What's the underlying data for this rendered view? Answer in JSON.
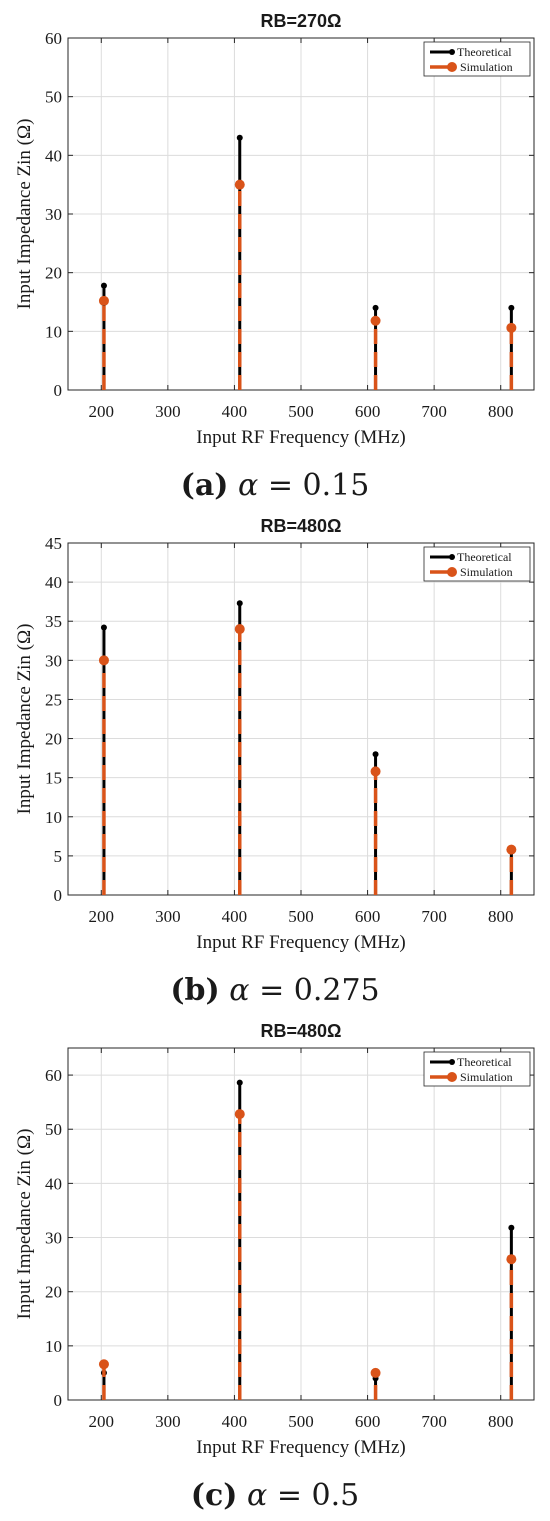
{
  "chart_data": [
    {
      "type": "stem",
      "title": "RB=270Ω",
      "xlabel": "Input RF Frequency (MHz)",
      "ylabel": "Input Impedance Zin (Ω)",
      "xlim": [
        150,
        850
      ],
      "ylim": [
        0,
        60
      ],
      "xticks": [
        200,
        300,
        400,
        500,
        600,
        700,
        800
      ],
      "yticks": [
        0,
        10,
        20,
        30,
        40,
        50,
        60
      ],
      "grid": true,
      "legend_position": "top-right",
      "colors": {
        "theoretical": "#000000",
        "simulation": "#d95319"
      },
      "series": [
        {
          "name": "Theoretical",
          "x": [
            204,
            408,
            612,
            816
          ],
          "y": [
            17.8,
            43.0,
            14.0,
            14.0
          ]
        },
        {
          "name": "Simulation",
          "x": [
            204,
            408,
            612,
            816
          ],
          "y": [
            15.2,
            35.0,
            11.8,
            10.6
          ]
        }
      ],
      "caption": {
        "letter": "(a)",
        "symbol": "α",
        "eq": "= 0.15"
      }
    },
    {
      "type": "stem",
      "title": "RB=480Ω",
      "xlabel": "Input RF Frequency (MHz)",
      "ylabel": "Input Impedance Zin (Ω)",
      "xlim": [
        150,
        850
      ],
      "ylim": [
        0,
        45
      ],
      "xticks": [
        200,
        300,
        400,
        500,
        600,
        700,
        800
      ],
      "yticks": [
        0,
        5,
        10,
        15,
        20,
        25,
        30,
        35,
        40,
        45
      ],
      "grid": true,
      "legend_position": "top-right",
      "colors": {
        "theoretical": "#000000",
        "simulation": "#d95319"
      },
      "series": [
        {
          "name": "Theoretical",
          "x": [
            204,
            408,
            612,
            816
          ],
          "y": [
            34.2,
            37.3,
            18.0,
            5.8
          ]
        },
        {
          "name": "Simulation",
          "x": [
            204,
            408,
            612,
            816
          ],
          "y": [
            30.0,
            34.0,
            15.8,
            5.8
          ]
        }
      ],
      "caption": {
        "letter": "(b)",
        "symbol": "α",
        "eq": "= 0.275"
      }
    },
    {
      "type": "stem",
      "title": "RB=480Ω",
      "xlabel": "Input RF Frequency (MHz)",
      "ylabel": "Input Impedance Zin (Ω)",
      "xlim": [
        150,
        850
      ],
      "ylim": [
        0,
        65
      ],
      "xticks": [
        200,
        300,
        400,
        500,
        600,
        700,
        800
      ],
      "yticks": [
        0,
        10,
        20,
        30,
        40,
        50,
        60
      ],
      "grid": true,
      "legend_position": "top-right",
      "colors": {
        "theoretical": "#000000",
        "simulation": "#d95319"
      },
      "series": [
        {
          "name": "Theoretical",
          "x": [
            204,
            408,
            612,
            816
          ],
          "y": [
            5.0,
            58.6,
            4.0,
            31.8
          ]
        },
        {
          "name": "Simulation",
          "x": [
            204,
            408,
            612,
            816
          ],
          "y": [
            6.6,
            52.8,
            5.0,
            26.0
          ]
        }
      ],
      "caption": {
        "letter": "(c)",
        "symbol": "α",
        "eq": "= 0.5"
      }
    }
  ]
}
